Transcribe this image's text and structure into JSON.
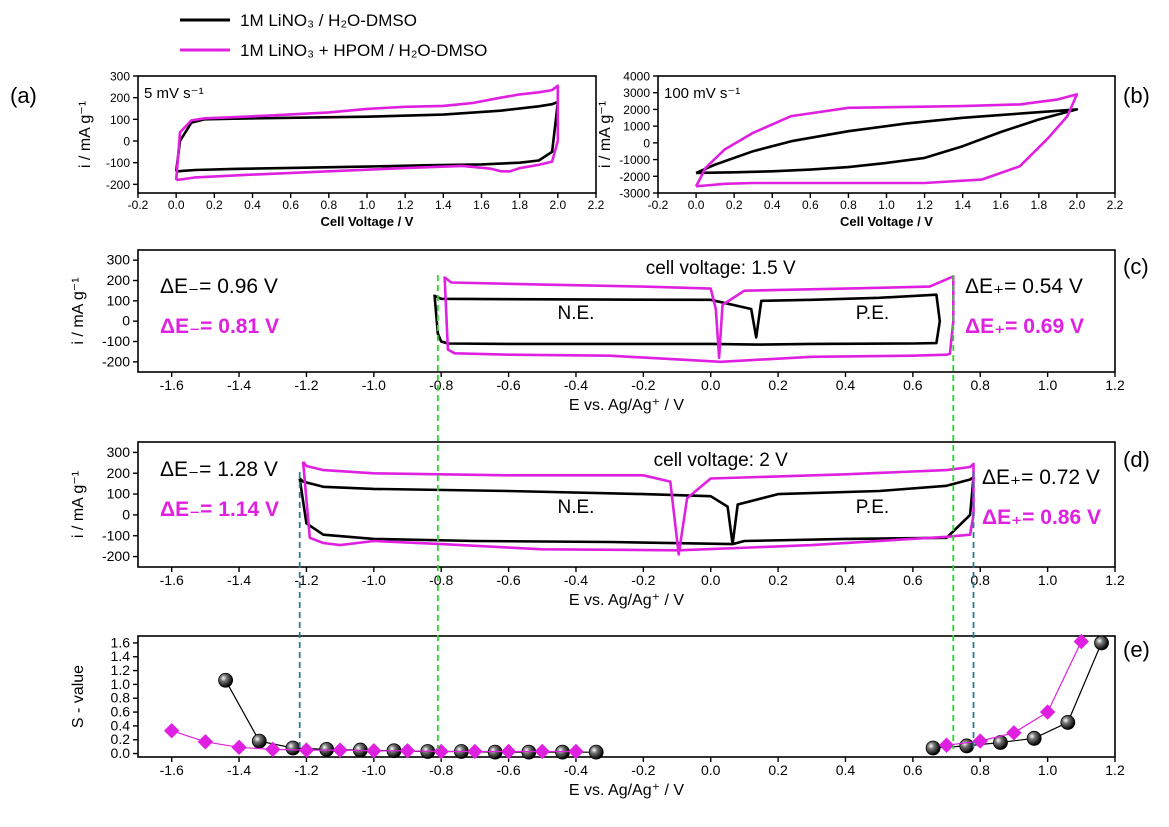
{
  "legend": {
    "series_black": "1M LiNO₃ / H₂O-DMSO",
    "series_magenta": "1M LiNO₃ + HPOM / H₂O-DMSO",
    "color_black": "#000000",
    "color_magenta": "#e020e0"
  },
  "chart_data": [
    {
      "panel": "(a)",
      "type": "line",
      "annotation": "5 mV s⁻¹",
      "xlabel": "Cell Voltage / V",
      "ylabel": "i / mA g⁻¹",
      "xlim": [
        -0.2,
        2.2
      ],
      "ylim": [
        -240,
        300
      ],
      "xticks": [
        "-0.2",
        "0.0",
        "0.2",
        "0.4",
        "0.6",
        "0.8",
        "1.0",
        "1.2",
        "1.4",
        "1.6",
        "1.8",
        "2.0",
        "2.2"
      ],
      "yticks": [
        "-200",
        "-100",
        "0",
        "100",
        "200",
        "300"
      ],
      "series": [
        {
          "color": "black",
          "x": [
            0,
            0.02,
            0.08,
            0.15,
            0.3,
            0.6,
            1.0,
            1.4,
            1.7,
            1.9,
            1.97,
            2.0,
            1.99,
            1.97,
            1.9,
            1.8,
            1.6,
            1.3,
            1.0,
            0.6,
            0.3,
            0.1,
            0.03,
            0.01,
            0
          ],
          "y": [
            -140,
            0,
            85,
            100,
            103,
            107,
            112,
            122,
            140,
            160,
            170,
            180,
            100,
            -50,
            -90,
            -100,
            -108,
            -112,
            -118,
            -124,
            -129,
            -134,
            -138,
            -140,
            -140
          ]
        },
        {
          "color": "magenta",
          "x": [
            0,
            0.02,
            0.08,
            0.15,
            0.3,
            0.5,
            0.8,
            1.0,
            1.2,
            1.4,
            1.55,
            1.7,
            1.8,
            1.9,
            1.97,
            2.0,
            2.0,
            1.97,
            1.9,
            1.8,
            1.75,
            1.7,
            1.65,
            1.5,
            1.2,
            0.8,
            0.4,
            0.1,
            0.02,
            0
          ],
          "y": [
            -180,
            40,
            95,
            105,
            110,
            118,
            132,
            148,
            158,
            162,
            175,
            200,
            215,
            225,
            235,
            255,
            0,
            -95,
            -110,
            -125,
            -140,
            -140,
            -128,
            -115,
            -125,
            -140,
            -155,
            -168,
            -178,
            -180
          ]
        }
      ]
    },
    {
      "panel": "(b)",
      "type": "line",
      "annotation": "100 mV s⁻¹",
      "xlabel": "Cell Voltage / V",
      "ylabel": "i / mA g⁻¹",
      "xlim": [
        -0.2,
        2.2
      ],
      "ylim": [
        -3000,
        4000
      ],
      "xticks": [
        "-0.2",
        "0.0",
        "0.2",
        "0.4",
        "0.6",
        "0.8",
        "1.0",
        "1.2",
        "1.4",
        "1.6",
        "1.8",
        "2.0",
        "2.2"
      ],
      "yticks": [
        "-3000",
        "-2000",
        "-1000",
        "0",
        "1000",
        "2000",
        "3000",
        "4000"
      ],
      "series": [
        {
          "color": "black",
          "x": [
            0,
            0.1,
            0.3,
            0.5,
            0.8,
            1.1,
            1.4,
            1.7,
            2.0,
            1.8,
            1.6,
            1.4,
            1.2,
            1.0,
            0.8,
            0.6,
            0.4,
            0.2,
            0
          ],
          "y": [
            -1800,
            -1300,
            -500,
            100,
            700,
            1150,
            1500,
            1750,
            2000,
            1400,
            650,
            -200,
            -900,
            -1200,
            -1450,
            -1600,
            -1700,
            -1760,
            -1800
          ]
        },
        {
          "color": "magenta",
          "x": [
            0,
            0.05,
            0.15,
            0.3,
            0.5,
            0.8,
            1.1,
            1.4,
            1.7,
            1.9,
            2.0,
            1.95,
            1.85,
            1.7,
            1.5,
            1.2,
            0.9,
            0.6,
            0.3,
            0.15,
            0.05,
            0
          ],
          "y": [
            -2600,
            -1500,
            -400,
            600,
            1600,
            2100,
            2150,
            2200,
            2300,
            2600,
            2900,
            1600,
            300,
            -1400,
            -2200,
            -2400,
            -2400,
            -2400,
            -2400,
            -2450,
            -2550,
            -2600
          ]
        }
      ]
    },
    {
      "panel": "(c)",
      "type": "line",
      "annotation": "cell voltage: 1.5 V",
      "xlabel": "E vs. Ag/Ag⁺ / V",
      "ylabel": "i / mA g⁻¹",
      "xlim": [
        -1.7,
        1.2
      ],
      "ylim": [
        -250,
        350
      ],
      "xticks": [
        "-1.6",
        "-1.4",
        "-1.2",
        "-1.0",
        "-0.8",
        "-0.6",
        "-0.4",
        "-0.2",
        "0.0",
        "0.2",
        "0.4",
        "0.6",
        "0.8",
        "1.0",
        "1.2"
      ],
      "yticks": [
        "-200",
        "-100",
        "0",
        "100",
        "200",
        "300"
      ],
      "region_labels": [
        "N.E.",
        "P.E."
      ],
      "delta_labels": [
        {
          "text": "ΔE₋= 0.96 V",
          "color": "black"
        },
        {
          "text": "ΔE₋= 0.81 V",
          "color": "magenta"
        },
        {
          "text": "ΔE₊= 0.54 V",
          "color": "black"
        },
        {
          "text": "ΔE₊= 0.69 V",
          "color": "magenta"
        }
      ],
      "series": [
        {
          "color": "black",
          "x": [
            -0.82,
            -0.82,
            -0.8,
            -0.6,
            -0.3,
            0.0,
            0.12,
            0.135,
            0.15,
            0.3,
            0.5,
            0.67,
            0.68,
            0.67,
            0.6,
            0.3,
            0.135,
            0.0,
            -0.3,
            -0.6,
            -0.78,
            -0.8,
            -0.81,
            -0.82
          ],
          "y": [
            130,
            125,
            110,
            108,
            106,
            105,
            60,
            -80,
            100,
            105,
            115,
            130,
            0,
            -108,
            -110,
            -112,
            -115,
            -112,
            -112,
            -112,
            -110,
            -100,
            -60,
            130
          ]
        },
        {
          "color": "magenta",
          "x": [
            -0.79,
            -0.79,
            -0.77,
            -0.5,
            -0.2,
            0.0,
            0.015,
            0.025,
            0.035,
            0.1,
            0.4,
            0.65,
            0.72,
            0.72,
            0.71,
            0.7,
            0.6,
            0.3,
            0.03,
            -0.3,
            -0.6,
            -0.76,
            -0.78,
            -0.79
          ],
          "y": [
            220,
            215,
            190,
            180,
            170,
            160,
            60,
            -180,
            80,
            150,
            160,
            170,
            220,
            0,
            -160,
            -165,
            -170,
            -175,
            -200,
            -170,
            -165,
            -158,
            -140,
            220
          ]
        }
      ]
    },
    {
      "panel": "(d)",
      "type": "line",
      "annotation": "cell voltage: 2 V",
      "xlabel": "E vs. Ag/Ag⁺ / V",
      "ylabel": "i / mA g⁻¹",
      "xlim": [
        -1.7,
        1.2
      ],
      "ylim": [
        -250,
        350
      ],
      "xticks": [
        "-1.6",
        "-1.4",
        "-1.2",
        "-1.0",
        "-0.8",
        "-0.6",
        "-0.4",
        "-0.2",
        "0.0",
        "0.2",
        "0.4",
        "0.6",
        "0.8",
        "1.0",
        "1.2"
      ],
      "yticks": [
        "-200",
        "-100",
        "0",
        "100",
        "200",
        "300"
      ],
      "region_labels": [
        "N.E.",
        "P.E."
      ],
      "delta_labels": [
        {
          "text": "ΔE₋= 1.28 V",
          "color": "black"
        },
        {
          "text": "ΔE₋= 1.14 V",
          "color": "magenta"
        },
        {
          "text": "ΔE₊= 0.72 V",
          "color": "black"
        },
        {
          "text": "ΔE₊= 0.86 V",
          "color": "magenta"
        }
      ],
      "series": [
        {
          "color": "black",
          "x": [
            -1.22,
            -1.21,
            -1.15,
            -1.0,
            -0.6,
            -0.2,
            0.0,
            0.05,
            0.065,
            0.08,
            0.2,
            0.5,
            0.7,
            0.77,
            0.78,
            0.77,
            0.7,
            0.4,
            0.1,
            0.065,
            -0.3,
            -0.7,
            -1.0,
            -1.15,
            -1.2,
            -1.22
          ],
          "y": [
            175,
            160,
            135,
            125,
            115,
            100,
            90,
            40,
            -140,
            50,
            100,
            115,
            140,
            170,
            180,
            0,
            -110,
            -115,
            -125,
            -140,
            -130,
            -125,
            -115,
            -95,
            -40,
            175
          ]
        },
        {
          "color": "magenta",
          "x": [
            -1.21,
            -1.2,
            -1.15,
            -1.0,
            -0.6,
            -0.2,
            -0.12,
            -0.095,
            -0.07,
            0.0,
            0.4,
            0.7,
            0.77,
            0.78,
            0.78,
            0.77,
            0.7,
            0.3,
            -0.095,
            -0.5,
            -0.8,
            -1.0,
            -1.1,
            -1.15,
            -1.19,
            -1.21
          ],
          "y": [
            255,
            235,
            215,
            200,
            190,
            190,
            160,
            -190,
            80,
            175,
            195,
            215,
            230,
            245,
            0,
            -95,
            -105,
            -145,
            -170,
            -165,
            -140,
            -125,
            -145,
            -135,
            -110,
            255
          ]
        }
      ]
    },
    {
      "panel": "(e)",
      "type": "scatter",
      "xlabel": "E vs. Ag/Ag⁺ / V",
      "ylabel": "S - value",
      "xlim": [
        -1.7,
        1.2
      ],
      "ylim": [
        -0.05,
        1.7
      ],
      "xticks": [
        "-1.6",
        "-1.4",
        "-1.2",
        "-1.0",
        "-0.8",
        "-0.6",
        "-0.4",
        "-0.2",
        "0.0",
        "0.2",
        "0.4",
        "0.6",
        "0.8",
        "1.0",
        "1.2"
      ],
      "yticks": [
        "0.0",
        "0.2",
        "0.4",
        "0.6",
        "0.8",
        "1.0",
        "1.2",
        "1.4",
        "1.6"
      ],
      "series": [
        {
          "color": "black",
          "marker": "sphere",
          "x": [
            -1.44,
            -1.34,
            -1.24,
            -1.14,
            -1.04,
            -0.94,
            -0.84,
            -0.74,
            -0.64,
            -0.54,
            -0.44,
            -0.34
          ],
          "y": [
            1.06,
            0.18,
            0.08,
            0.06,
            0.05,
            0.04,
            0.03,
            0.03,
            0.02,
            0.02,
            0.02,
            0.02
          ]
        },
        {
          "color": "magenta",
          "marker": "diamond",
          "x": [
            -1.6,
            -1.5,
            -1.4,
            -1.3,
            -1.2,
            -1.1,
            -1.0,
            -0.9,
            -0.8,
            -0.7,
            -0.6,
            -0.5,
            -0.4
          ],
          "y": [
            0.33,
            0.17,
            0.09,
            0.06,
            0.05,
            0.05,
            0.04,
            0.04,
            0.03,
            0.03,
            0.03,
            0.03,
            0.03
          ]
        },
        {
          "color": "black",
          "marker": "sphere",
          "x": [
            0.66,
            0.76,
            0.86,
            0.96,
            1.06,
            1.16
          ],
          "y": [
            0.08,
            0.11,
            0.16,
            0.22,
            0.45,
            1.6
          ]
        },
        {
          "color": "magenta",
          "marker": "diamond",
          "x": [
            0.7,
            0.8,
            0.9,
            1.0,
            1.1
          ],
          "y": [
            0.12,
            0.18,
            0.3,
            0.6,
            1.62
          ]
        }
      ]
    }
  ],
  "guide_lines": {
    "green_x": [
      -0.81,
      0.72
    ],
    "teal_x": [
      -1.22,
      0.78
    ],
    "green_color": "#22dd22",
    "teal_color": "#2a7a9a"
  }
}
